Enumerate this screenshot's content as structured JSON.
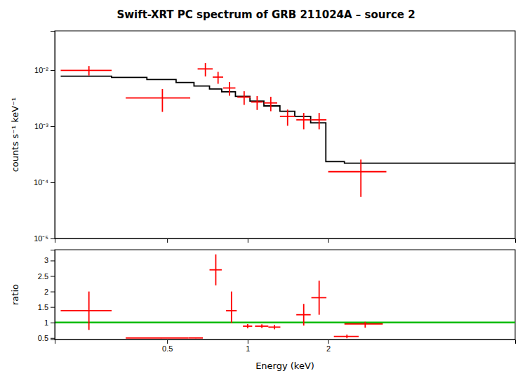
{
  "chart_data": [
    {
      "type": "line",
      "title": "Swift-XRT PC spectrum of GRB 211024A – source 2",
      "y_label": "counts s⁻¹ keV⁻¹",
      "log": true,
      "grid": false,
      "tick_labels": "y",
      "xlim": [
        0.19,
        10.0
      ],
      "xticks": [
        0.5,
        1,
        2
      ],
      "ylim": [
        1e-05,
        0.05
      ],
      "yticks": [
        {
          "value": 1e-05,
          "label": "10⁻⁵"
        },
        {
          "value": 0.0001,
          "label": "10⁻⁴"
        },
        {
          "value": 0.001,
          "label": "10⁻³"
        },
        {
          "value": 0.01,
          "label": "10⁻²"
        }
      ],
      "series": [
        {
          "type": "line",
          "color": "#000000",
          "x": [
            0.2,
            0.31,
            0.31,
            0.42,
            0.42,
            0.54,
            0.54,
            0.63,
            0.63,
            0.72,
            0.72,
            0.8,
            0.8,
            0.9,
            0.9,
            1.02,
            1.02,
            1.15,
            1.15,
            1.32,
            1.32,
            1.5,
            1.5,
            1.72,
            1.72,
            1.96,
            1.96,
            2.3,
            2.3,
            10.0
          ],
          "values": [
            0.0078,
            0.0078,
            0.0074,
            0.0074,
            0.0068,
            0.0068,
            0.006,
            0.006,
            0.0052,
            0.0052,
            0.0046,
            0.0046,
            0.0041,
            0.0041,
            0.0034,
            0.0034,
            0.0028,
            0.0028,
            0.0023,
            0.0023,
            0.00185,
            0.00185,
            0.0015,
            0.0015,
            0.00115,
            0.00115,
            0.000235,
            0.000235,
            0.00022,
            0.00022
          ]
        },
        {
          "type": "errorbar",
          "color": "#ff0000",
          "x": [
            0.255,
            0.48,
            0.695,
            0.775,
            0.855,
            0.97,
            1.085,
            1.22,
            1.41,
            1.62,
            1.85,
            2.65
          ],
          "x_err": [
            0.055,
            0.13,
            0.045,
            0.035,
            0.045,
            0.055,
            0.055,
            0.07,
            0.09,
            0.1,
            0.12,
            0.65
          ],
          "values": [
            0.0099,
            0.0032,
            0.0105,
            0.0075,
            0.0048,
            0.0033,
            0.0027,
            0.0026,
            0.0015,
            0.0013,
            0.0013,
            0.000155
          ],
          "err_low": [
            0.0019,
            0.0014,
            0.0028,
            0.0018,
            0.0013,
            0.0009,
            0.00075,
            0.00075,
            0.00048,
            0.00042,
            0.00042,
            0.0001
          ],
          "err_high": [
            0.0019,
            0.0014,
            0.0028,
            0.0018,
            0.0013,
            0.0009,
            0.00075,
            0.00075,
            0.00048,
            0.00042,
            0.00042,
            0.0001
          ]
        }
      ]
    },
    {
      "type": "errorbar",
      "x_label": "Energy (keV)",
      "y_label": "ratio",
      "log": "x",
      "grid": false,
      "xlim": [
        0.19,
        10.0
      ],
      "xticks": [
        0.5,
        1,
        2
      ],
      "ylim": [
        0.45,
        3.35
      ],
      "yticks": [
        0.5,
        1,
        1.5,
        2,
        2.5,
        3
      ],
      "series": [
        {
          "type": "hline",
          "color": "#00bb00",
          "values": [
            1.0
          ]
        },
        {
          "type": "errorbar",
          "color": "#ff0000",
          "x": [
            0.255,
            0.475,
            0.64,
            0.76,
            0.87,
            1.0,
            1.13,
            1.26,
            1.62,
            1.85,
            2.35,
            2.75
          ],
          "x_err": [
            0.055,
            0.125,
            0.04,
            0.04,
            0.04,
            0.04,
            0.065,
            0.065,
            0.1,
            0.12,
            0.25,
            0.45
          ],
          "values": [
            1.38,
            0.5,
            0.5,
            2.7,
            1.38,
            0.88,
            0.88,
            0.85,
            1.25,
            1.8,
            0.55,
            0.95
          ],
          "err_low": [
            0.62,
            0.01,
            0.01,
            0.5,
            0.4,
            0.07,
            0.06,
            0.07,
            0.35,
            0.55,
            0.06,
            0.12
          ],
          "err_high": [
            0.62,
            0.01,
            0.01,
            0.5,
            0.62,
            0.07,
            0.06,
            0.07,
            0.35,
            0.55,
            0.06,
            0.07
          ]
        }
      ]
    }
  ]
}
